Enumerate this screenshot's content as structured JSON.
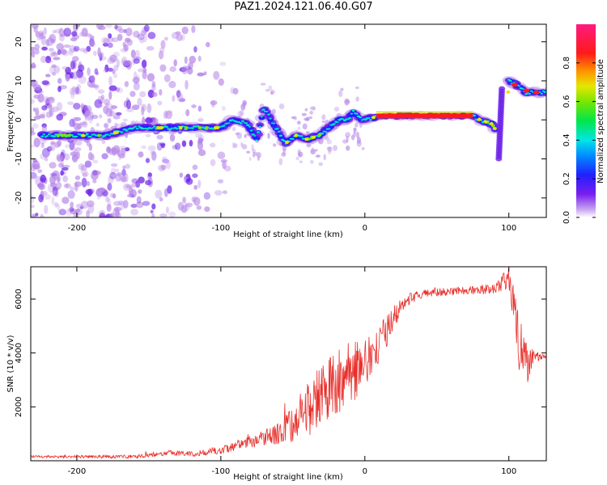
{
  "title": "PAZ1.2024.121.06.40.G07",
  "colors": {
    "snr_line": "#e8302c",
    "spec_low": "#b98be8",
    "spec_mid": "#6a1ee8",
    "spec_core": "#2020ff",
    "spec_hot": "#00e6c8",
    "spec_peak": "#ff1a1a"
  },
  "chart_data": [
    {
      "type": "heatmap",
      "title": "PAZ1.2024.121.06.40.G07",
      "xlabel": "Height of straight line (km)",
      "ylabel": "Frequency (Hz)",
      "xlim": [
        -232,
        126
      ],
      "ylim": [
        -25,
        24.5
      ],
      "xticks": [
        -200,
        -100,
        0,
        100
      ],
      "yticks": [
        -20,
        -10,
        0,
        10,
        20
      ],
      "xtick_labels": [
        "-200",
        "-100",
        "0",
        "100"
      ],
      "ytick_labels": [
        "-20",
        "-10",
        "0",
        "10",
        "20"
      ],
      "colorbar": {
        "label": "Normalized spectral amplitude",
        "range": [
          0,
          1
        ],
        "ticks": [
          0.0,
          0.2,
          0.4,
          0.6,
          0.8
        ],
        "tick_labels": [
          "0.0",
          "0.2",
          "0.4",
          "0.6",
          "0.8"
        ],
        "colormap": "rainbow (violet-blue-cyan-green-yellow-red-magenta)"
      },
      "ridge_trace": {
        "description": "dominant frequency ridge",
        "x": [
          -222,
          -200,
          -180,
          -160,
          -140,
          -120,
          -100,
          -92,
          -82,
          -75,
          -70,
          -62,
          -55,
          -48,
          -40,
          -32,
          -25,
          -18,
          -12,
          -8,
          -2,
          5,
          10,
          30,
          50,
          75,
          80,
          88,
          90,
          92,
          97,
          100,
          105,
          112,
          118,
          125
        ],
        "y": [
          -4,
          -4,
          -4,
          -2,
          -2,
          -2,
          -2,
          0,
          -1,
          -5,
          3,
          -2,
          -6,
          -4,
          -5,
          -4,
          -2,
          0,
          0,
          2,
          0,
          0.5,
          1,
          1,
          1,
          1,
          0,
          -1,
          -2,
          -4,
          -8,
          10,
          9,
          7,
          7,
          7
        ]
      },
      "grid": false
    },
    {
      "type": "line",
      "xlabel": "Height of straight line (km)",
      "ylabel": "SNR (10 * v/v)",
      "xlim": [
        -232,
        126
      ],
      "ylim": [
        0,
        7200
      ],
      "xticks": [
        -200,
        -100,
        0,
        100
      ],
      "yticks": [
        2000,
        4000,
        6000
      ],
      "xtick_labels": [
        "-200",
        "-100",
        "0",
        "100"
      ],
      "ytick_labels": [
        "2000",
        "4000",
        "6000"
      ],
      "series": [
        {
          "envelope_x": [
            -232,
            -200,
            -160,
            -135,
            -120,
            -100,
            -80,
            -60,
            -50,
            -40,
            -30,
            -20,
            -10,
            0,
            10,
            20,
            30,
            40,
            50,
            70,
            90,
            95,
            100,
            103,
            107,
            112,
            118,
            126
          ],
          "envelope_y": [
            150,
            150,
            150,
            300,
            250,
            400,
            700,
            1000,
            1400,
            2000,
            2500,
            3000,
            3200,
            3700,
            4300,
            5300,
            6000,
            6200,
            6250,
            6300,
            6400,
            6600,
            6800,
            6000,
            4400,
            3500,
            3900,
            3800
          ],
          "noise_amplitude": [
            50,
            50,
            70,
            90,
            100,
            140,
            220,
            400,
            700,
            900,
            1200,
            1400,
            1200,
            900,
            700,
            500,
            250,
            150,
            150,
            150,
            200,
            300,
            400,
            800,
            1100,
            900,
            200,
            100
          ]
        }
      ],
      "grid": false
    }
  ]
}
